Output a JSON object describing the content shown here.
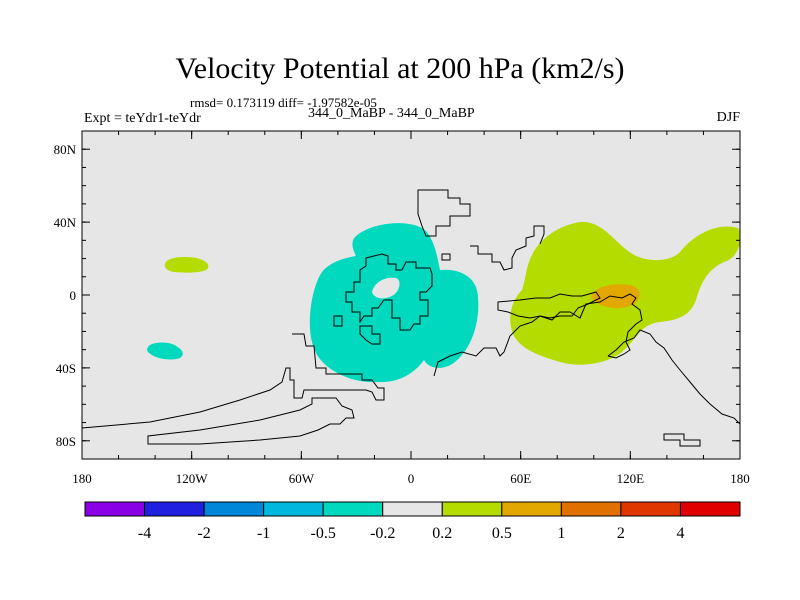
{
  "title": "Velocity Potential at 200 hPa (km2/s)",
  "stats": "rmsd= 0.173119 diff= -1.97582e-05",
  "experiment": "Expt = teYdr1-teYdr",
  "cases": "344_0_MaBP - 344_0_MaBP",
  "season": "DJF",
  "colors": {
    "background_field": "#e6e6e6",
    "negative_fill": "#00d9bd",
    "positive_fill": "#b4dc00",
    "positive_fill_strong": "#e3a800"
  },
  "chart_data": {
    "type": "contour-map",
    "projection": "cylindrical-equidistant",
    "lon_range": [
      -180,
      180
    ],
    "lat_range": [
      -90,
      90
    ],
    "x_ticks": [
      {
        "value": -180,
        "label": "180"
      },
      {
        "value": -120,
        "label": "120W"
      },
      {
        "value": -60,
        "label": "60W"
      },
      {
        "value": 0,
        "label": "0"
      },
      {
        "value": 60,
        "label": "60E"
      },
      {
        "value": 120,
        "label": "120E"
      },
      {
        "value": 180,
        "label": "180"
      }
    ],
    "y_ticks": [
      {
        "value": 80,
        "label": "80N"
      },
      {
        "value": 40,
        "label": "40N"
      },
      {
        "value": 0,
        "label": "0"
      },
      {
        "value": -40,
        "label": "40S"
      },
      {
        "value": -80,
        "label": "80S"
      }
    ],
    "colorbar": {
      "colors": [
        "#8a00e6",
        "#2020e0",
        "#0087d9",
        "#00b8dd",
        "#00d9bd",
        "#e6e6e6",
        "#b4dc00",
        "#e3a800",
        "#e07000",
        "#e03600",
        "#e00000"
      ],
      "labels": [
        "-4",
        "-2",
        "-1",
        "-0.5",
        "-0.2",
        "0.2",
        "0.5",
        "1",
        "2",
        "4"
      ]
    },
    "regions": [
      {
        "name": "western-hemisphere-negative-center",
        "level": "-0.2 to -0.5",
        "lon_range": [
          -55,
          35
        ],
        "lat_range": [
          -48,
          40
        ]
      },
      {
        "name": "north-pacific-positive-patch",
        "level": "0.2 to 0.5",
        "lon_range": [
          -134,
          -108
        ],
        "lat_range": [
          13,
          20
        ]
      },
      {
        "name": "south-pacific-negative-patch",
        "level": "-0.2 to -0.5",
        "lon_range": [
          -144,
          -124
        ],
        "lat_range": [
          -35,
          -26
        ]
      },
      {
        "name": "eastern-hemisphere-positive-center",
        "level": "0.2 to 0.5",
        "lon_range": [
          55,
          180
        ],
        "lat_range": [
          -40,
          40
        ]
      },
      {
        "name": "indian-ocean-positive-maximum",
        "level": "0.5 to 1",
        "lon_range": [
          102,
          128
        ],
        "lat_range": [
          -7,
          5
        ]
      }
    ]
  }
}
